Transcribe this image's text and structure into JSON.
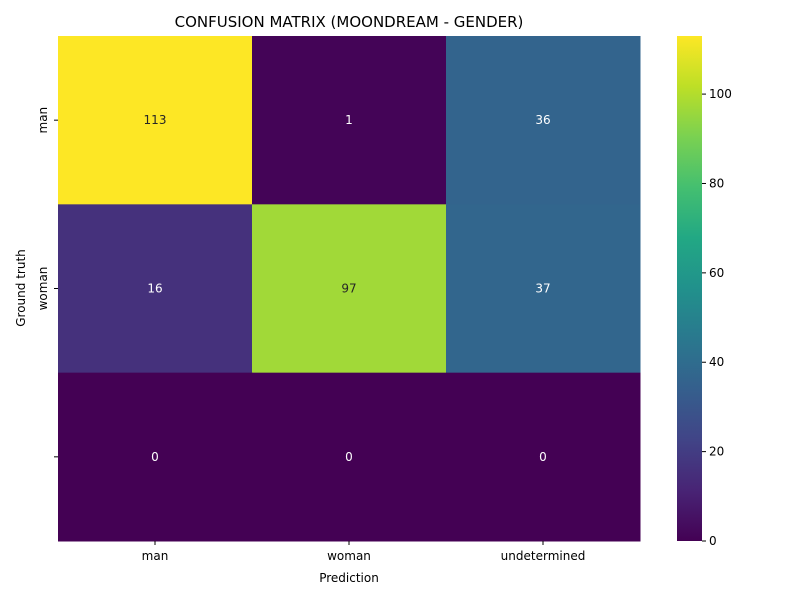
{
  "chart_data": {
    "type": "heatmap",
    "title": "CONFUSION MATRIX (MOONDREAM - GENDER)",
    "xlabel": "Prediction",
    "ylabel": "Ground truth",
    "x_categories": [
      "man",
      "woman",
      "undetermined"
    ],
    "y_tick_labels": [
      "man",
      "woman",
      ""
    ],
    "values": [
      [
        113,
        1,
        36
      ],
      [
        16,
        97,
        37
      ],
      [
        0,
        0,
        0
      ]
    ],
    "colormap": "viridis",
    "colorbar": {
      "range": [
        0,
        113
      ],
      "ticks": [
        0,
        20,
        40,
        60,
        80,
        100
      ]
    },
    "grid": false
  }
}
